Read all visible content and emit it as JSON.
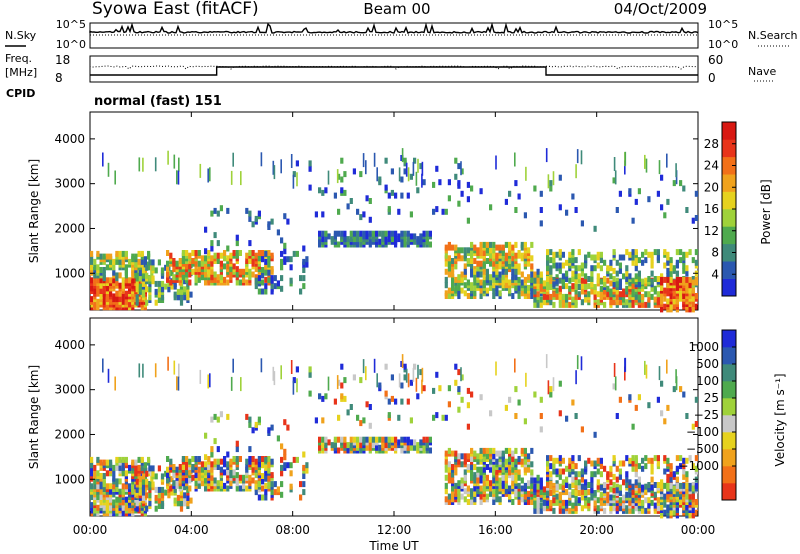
{
  "header": {
    "station": "Syowa East (fitACF)",
    "beam": "Beam 00",
    "date": "04/Oct/2009"
  },
  "noise_panel": {
    "left_label": "N.Sky",
    "right_label": "N.Search",
    "left_ticks": [
      "10^5",
      "10^0"
    ],
    "right_ticks": [
      "10^5",
      "10^0"
    ]
  },
  "freq_panel": {
    "left_label_1": "Freq.",
    "left_label_2": "[MHz]",
    "right_label": "Nave",
    "left_ticks": [
      "18",
      "8"
    ],
    "right_ticks": [
      "60",
      "0"
    ]
  },
  "cpid": {
    "label": "CPID",
    "text": "normal (fast) 151"
  },
  "chart_data": [
    {
      "type": "heatmap",
      "name": "power",
      "ylabel": "Slant Range [km]",
      "ylim": [
        180,
        4600
      ],
      "yticks": [
        1000,
        2000,
        3000,
        4000
      ],
      "ytick_labels": [
        "1000",
        "2000",
        "3000",
        "4000"
      ],
      "colorbar": {
        "label": "Power [dB]",
        "range": [
          0,
          32
        ],
        "ticks": [
          "4",
          "8",
          "12",
          "16",
          "20",
          "24",
          "28"
        ],
        "tick_values": [
          4,
          8,
          12,
          16,
          20,
          24,
          28
        ],
        "colors": [
          "#1f2bd8",
          "#2b58b0",
          "#3f8a7a",
          "#4faa4e",
          "#9fd23a",
          "#e6d21e",
          "#f0a21c",
          "#f27018",
          "#e8341a",
          "#d81812"
        ]
      }
    },
    {
      "type": "heatmap",
      "name": "velocity",
      "ylabel": "Slant Range [km]",
      "ylim": [
        180,
        4600
      ],
      "yticks": [
        1000,
        2000,
        3000,
        4000
      ],
      "ytick_labels": [
        "1000",
        "2000",
        "3000",
        "4000"
      ],
      "colorbar": {
        "label": "Velocity [m s⁻¹]",
        "ticks": [
          "1000",
          "500",
          "100",
          "25",
          "−25",
          "−100",
          "−500",
          "−1000"
        ],
        "colors": [
          "#1f2bd8",
          "#2b58b0",
          "#3f8a7a",
          "#4faa4e",
          "#9fd23a",
          "#c8c8c8",
          "#e6d21e",
          "#f0a21c",
          "#f27018",
          "#e8341a"
        ]
      }
    }
  ],
  "time_axis": {
    "label": "Time UT",
    "range": [
      0,
      24
    ],
    "ticks": [
      "00:00",
      "04:00",
      "08:00",
      "12:00",
      "16:00",
      "20:00",
      "00:00"
    ],
    "tick_values": [
      0,
      4,
      8,
      12,
      16,
      20,
      24
    ]
  }
}
